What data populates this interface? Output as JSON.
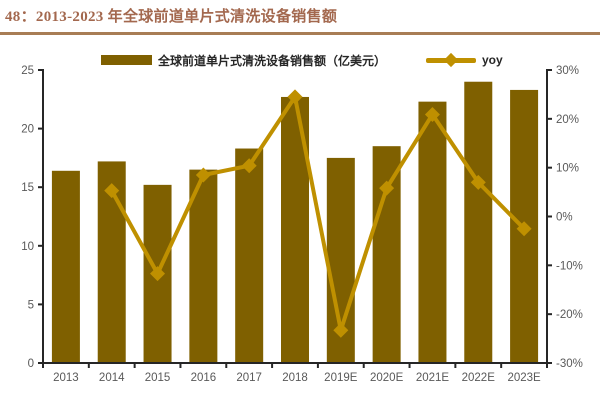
{
  "figure": {
    "title": "48：2013-2023 年全球前道单片式清洗设备销售额"
  },
  "legend": {
    "bar_label": "全球前道单片式清洗设备销售额（亿美元）",
    "line_label": "yoy"
  },
  "chart_data": {
    "type": "bar",
    "subtype": "bar+line combo, dual axis",
    "title": "2013-2023 年全球前道单片式清洗设备销售额",
    "categories": [
      "2013",
      "2014",
      "2015",
      "2016",
      "2017",
      "2018",
      "2019E",
      "2020E",
      "2021E",
      "2022E",
      "2023E"
    ],
    "series": [
      {
        "name": "全球前道单片式清洗设备销售额（亿美元）",
        "type": "bar",
        "axis": "left",
        "values": [
          16.4,
          17.2,
          15.2,
          16.5,
          18.3,
          22.7,
          17.5,
          18.5,
          22.3,
          24.0,
          23.3
        ]
      },
      {
        "name": "yoy",
        "type": "line",
        "axis": "right",
        "unit": "%",
        "values": [
          null,
          5.3,
          -11.7,
          8.5,
          10.4,
          24.5,
          -23.3,
          5.8,
          20.9,
          7.0,
          -2.5
        ]
      }
    ],
    "left_axis": {
      "min": 0,
      "max": 25,
      "step": 5,
      "tick_labels": [
        "0",
        "5",
        "10",
        "15",
        "20",
        "25"
      ]
    },
    "right_axis": {
      "min": -30,
      "max": 30,
      "step": 10,
      "tick_labels": [
        "-30%",
        "-20%",
        "-10%",
        "0%",
        "10%",
        "20%",
        "30%"
      ]
    },
    "grid": false,
    "legend_position": "top",
    "colors": {
      "bar": "#7F6000",
      "line": "#BF9000",
      "axis": "#262626",
      "tick_label": "#595959",
      "title": "#A3684E",
      "divider": "#A87D55"
    }
  }
}
